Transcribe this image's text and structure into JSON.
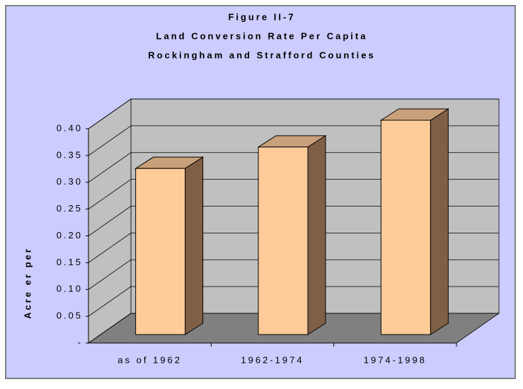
{
  "chart_data": {
    "type": "bar3d",
    "title": [
      "Figure II-7",
      "Land Conversion Rate Per Capita",
      "Rockingham and Strafford Counties"
    ],
    "y_label": "Acre er per",
    "categories": [
      "as of 1962",
      "1962-1974",
      "1974-1998"
    ],
    "values": [
      0.31,
      0.35,
      0.4
    ],
    "color": "#ffcc99",
    "ylim": [
      0,
      0.4
    ],
    "yticks": [
      {
        "value": 0,
        "label": "-"
      },
      0.05,
      {
        "value": 0.1,
        "label": "0.10"
      },
      0.15,
      {
        "value": 0.2,
        "label": "0.20"
      },
      0.25,
      {
        "value": 0.3,
        "label": "0.30"
      },
      0.35,
      {
        "value": 0.4,
        "label": "0.40"
      }
    ],
    "grid": true
  }
}
